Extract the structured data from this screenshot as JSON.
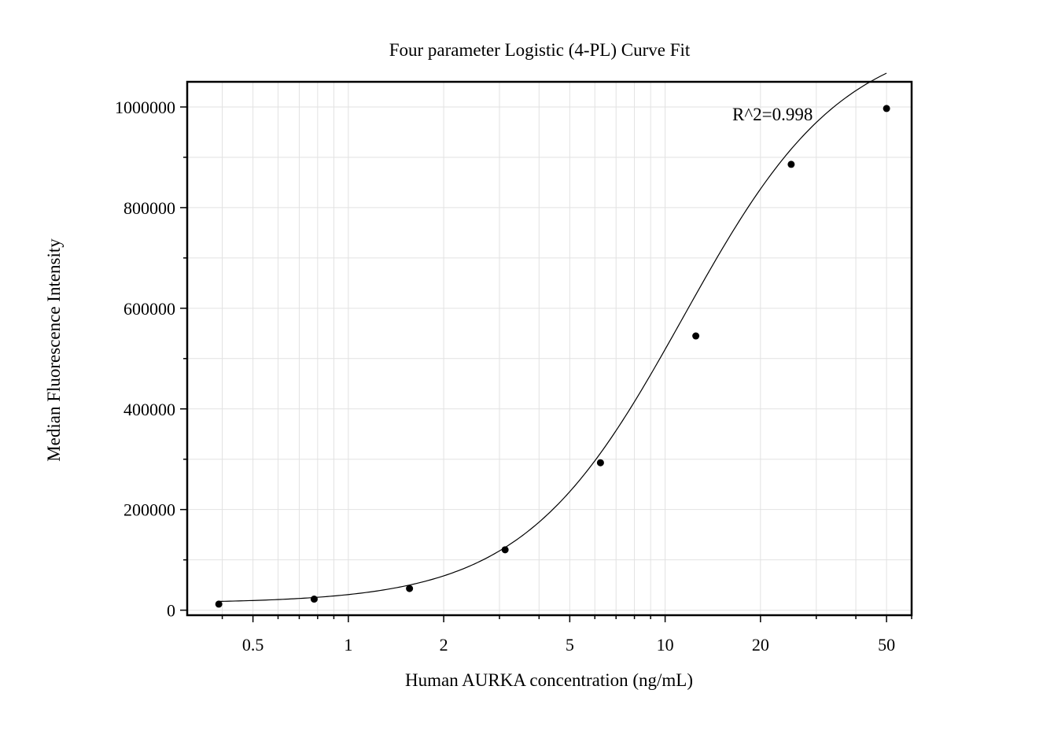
{
  "chart_data": {
    "type": "scatter",
    "title": "Four parameter Logistic (4-PL) Curve Fit",
    "xlabel": "Human AURKA concentration (ng/mL)",
    "ylabel": "Median Fluorescence Intensity",
    "x_scale": "log",
    "xlim": [
      0.31,
      60
    ],
    "ylim": [
      -10000,
      1050000
    ],
    "x_ticks": [
      0.5,
      1,
      2,
      5,
      10,
      20,
      50
    ],
    "x_tick_labels": [
      "0.5",
      "1",
      "2",
      "5",
      "10",
      "20",
      "50"
    ],
    "y_ticks": [
      0,
      200000,
      400000,
      600000,
      800000,
      1000000
    ],
    "y_tick_labels": [
      "0",
      "200000",
      "400000",
      "600000",
      "800000",
      "1000000"
    ],
    "grid": true,
    "annotation": "R^2=0.998",
    "series": [
      {
        "type": "scatter",
        "x": [
          0.39,
          0.78,
          1.56,
          3.125,
          6.25,
          12.5,
          25,
          50
        ],
        "y": [
          12000,
          22000,
          43000,
          120000,
          293000,
          545000,
          886000,
          997000
        ]
      },
      {
        "type": "line",
        "fit": "4PL",
        "params": {
          "bottom": 14000,
          "top": 1150000,
          "ec50": 11.4,
          "hill": 1.72
        },
        "x_range": [
          0.39,
          50
        ]
      }
    ]
  }
}
